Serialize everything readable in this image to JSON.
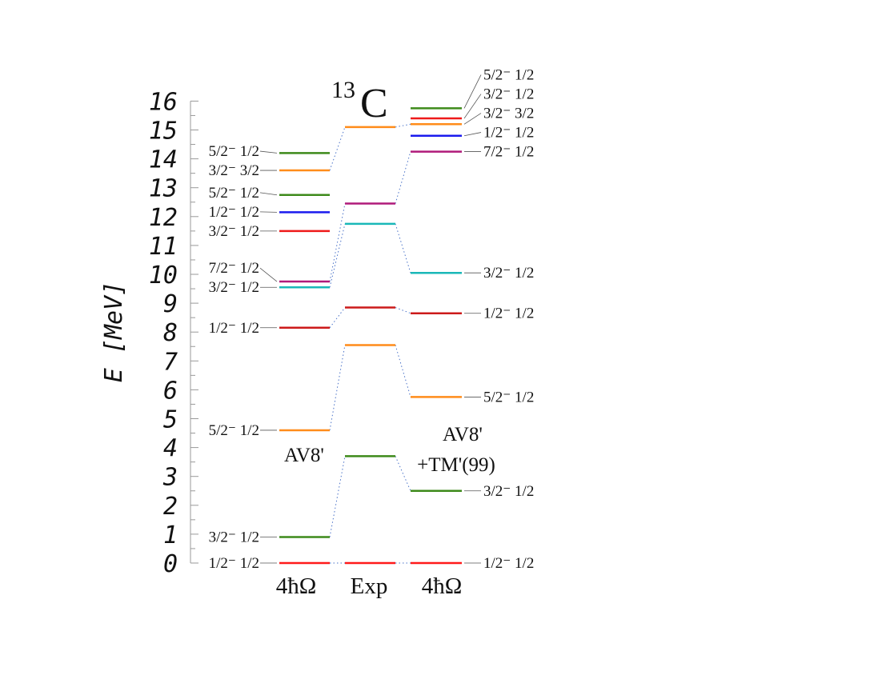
{
  "chart_data": {
    "type": "level-diagram",
    "title_mass": "13",
    "title_element": "C",
    "ylabel": "E [MeV]",
    "ylim": [
      0,
      16
    ],
    "yticks": [
      "0",
      "1",
      "2",
      "3",
      "4",
      "5",
      "6",
      "7",
      "8",
      "9",
      "10",
      "11",
      "12",
      "13",
      "14",
      "15",
      "16"
    ],
    "columns": [
      {
        "name": "4ħΩ",
        "model": "AV8'",
        "levels": [
          {
            "energy": 0.0,
            "label": "1/2⁻ 1/2",
            "color": "#ff1a1a"
          },
          {
            "energy": 0.9,
            "label": "3/2⁻ 1/2",
            "color": "#3d8a1a"
          },
          {
            "energy": 4.6,
            "label": "5/2⁻ 1/2",
            "color": "#ff8c1a"
          },
          {
            "energy": 8.15,
            "label": "1/2⁻ 1/2",
            "color": "#cc1a1a"
          },
          {
            "energy": 9.55,
            "label": "3/2⁻ 1/2",
            "color": "#1ab8b8"
          },
          {
            "energy": 9.75,
            "label": "7/2⁻ 1/2",
            "color": "#b01a7a"
          },
          {
            "energy": 11.5,
            "label": "3/2⁻ 1/2",
            "color": "#ee1a1a"
          },
          {
            "energy": 12.15,
            "label": "1/2⁻ 1/2",
            "color": "#1a1aee"
          },
          {
            "energy": 12.75,
            "label": "5/2⁻ 1/2",
            "color": "#3d8a1a"
          },
          {
            "energy": 13.6,
            "label": "3/2⁻ 3/2",
            "color": "#ff8c1a"
          },
          {
            "energy": 14.2,
            "label": "5/2⁻ 1/2",
            "color": "#3d8a1a"
          }
        ]
      },
      {
        "name": "Exp",
        "levels": [
          {
            "energy": 0.0,
            "color": "#ff1a1a"
          },
          {
            "energy": 3.7,
            "color": "#3d8a1a"
          },
          {
            "energy": 7.55,
            "color": "#ff8c1a"
          },
          {
            "energy": 8.85,
            "color": "#cc1a1a"
          },
          {
            "energy": 11.75,
            "color": "#1ab8b8"
          },
          {
            "energy": 12.45,
            "color": "#b01a7a"
          },
          {
            "energy": 15.1,
            "color": "#ff8c1a"
          }
        ]
      },
      {
        "name": "4ħΩ",
        "model_line1": "AV8'",
        "model_line2": "+TM'(99)",
        "levels": [
          {
            "energy": 0.0,
            "label": "1/2⁻ 1/2",
            "color": "#ff1a1a"
          },
          {
            "energy": 2.5,
            "label": "3/2⁻ 1/2",
            "color": "#3d8a1a"
          },
          {
            "energy": 5.75,
            "label": "5/2⁻ 1/2",
            "color": "#ff8c1a"
          },
          {
            "energy": 8.65,
            "label": "1/2⁻ 1/2",
            "color": "#cc1a1a"
          },
          {
            "energy": 10.05,
            "label": "3/2⁻ 1/2",
            "color": "#1ab8b8"
          },
          {
            "energy": 14.25,
            "label": "7/2⁻ 1/2",
            "color": "#b01a7a"
          },
          {
            "energy": 14.8,
            "label": "1/2⁻ 1/2",
            "color": "#1a1aee"
          },
          {
            "energy": 15.2,
            "label": "3/2⁻ 3/2",
            "color": "#ff8c1a"
          },
          {
            "energy": 15.4,
            "label": "3/2⁻ 1/2",
            "color": "#ee1a1a"
          },
          {
            "energy": 15.75,
            "label": "5/2⁻ 1/2",
            "color": "#3d8a1a"
          }
        ]
      }
    ],
    "connectors": [
      {
        "from": [
          0,
          0.0
        ],
        "to": [
          1,
          0.0
        ]
      },
      {
        "from": [
          0,
          0.9
        ],
        "to": [
          1,
          3.7
        ]
      },
      {
        "from": [
          0,
          4.6
        ],
        "to": [
          1,
          7.55
        ]
      },
      {
        "from": [
          0,
          8.15
        ],
        "to": [
          1,
          8.85
        ]
      },
      {
        "from": [
          0,
          9.55
        ],
        "to": [
          1,
          11.75
        ]
      },
      {
        "from": [
          0,
          9.75
        ],
        "to": [
          1,
          12.45
        ]
      },
      {
        "from": [
          0,
          13.6
        ],
        "to": [
          1,
          15.1
        ]
      },
      {
        "from": [
          1,
          0.0
        ],
        "to": [
          2,
          0.0
        ]
      },
      {
        "from": [
          1,
          3.7
        ],
        "to": [
          2,
          2.5
        ]
      },
      {
        "from": [
          1,
          7.55
        ],
        "to": [
          2,
          5.75
        ]
      },
      {
        "from": [
          1,
          8.85
        ],
        "to": [
          2,
          8.65
        ]
      },
      {
        "from": [
          1,
          11.75
        ],
        "to": [
          2,
          10.05
        ]
      },
      {
        "from": [
          1,
          12.45
        ],
        "to": [
          2,
          14.25
        ]
      },
      {
        "from": [
          1,
          15.1
        ],
        "to": [
          2,
          15.2
        ]
      }
    ]
  }
}
